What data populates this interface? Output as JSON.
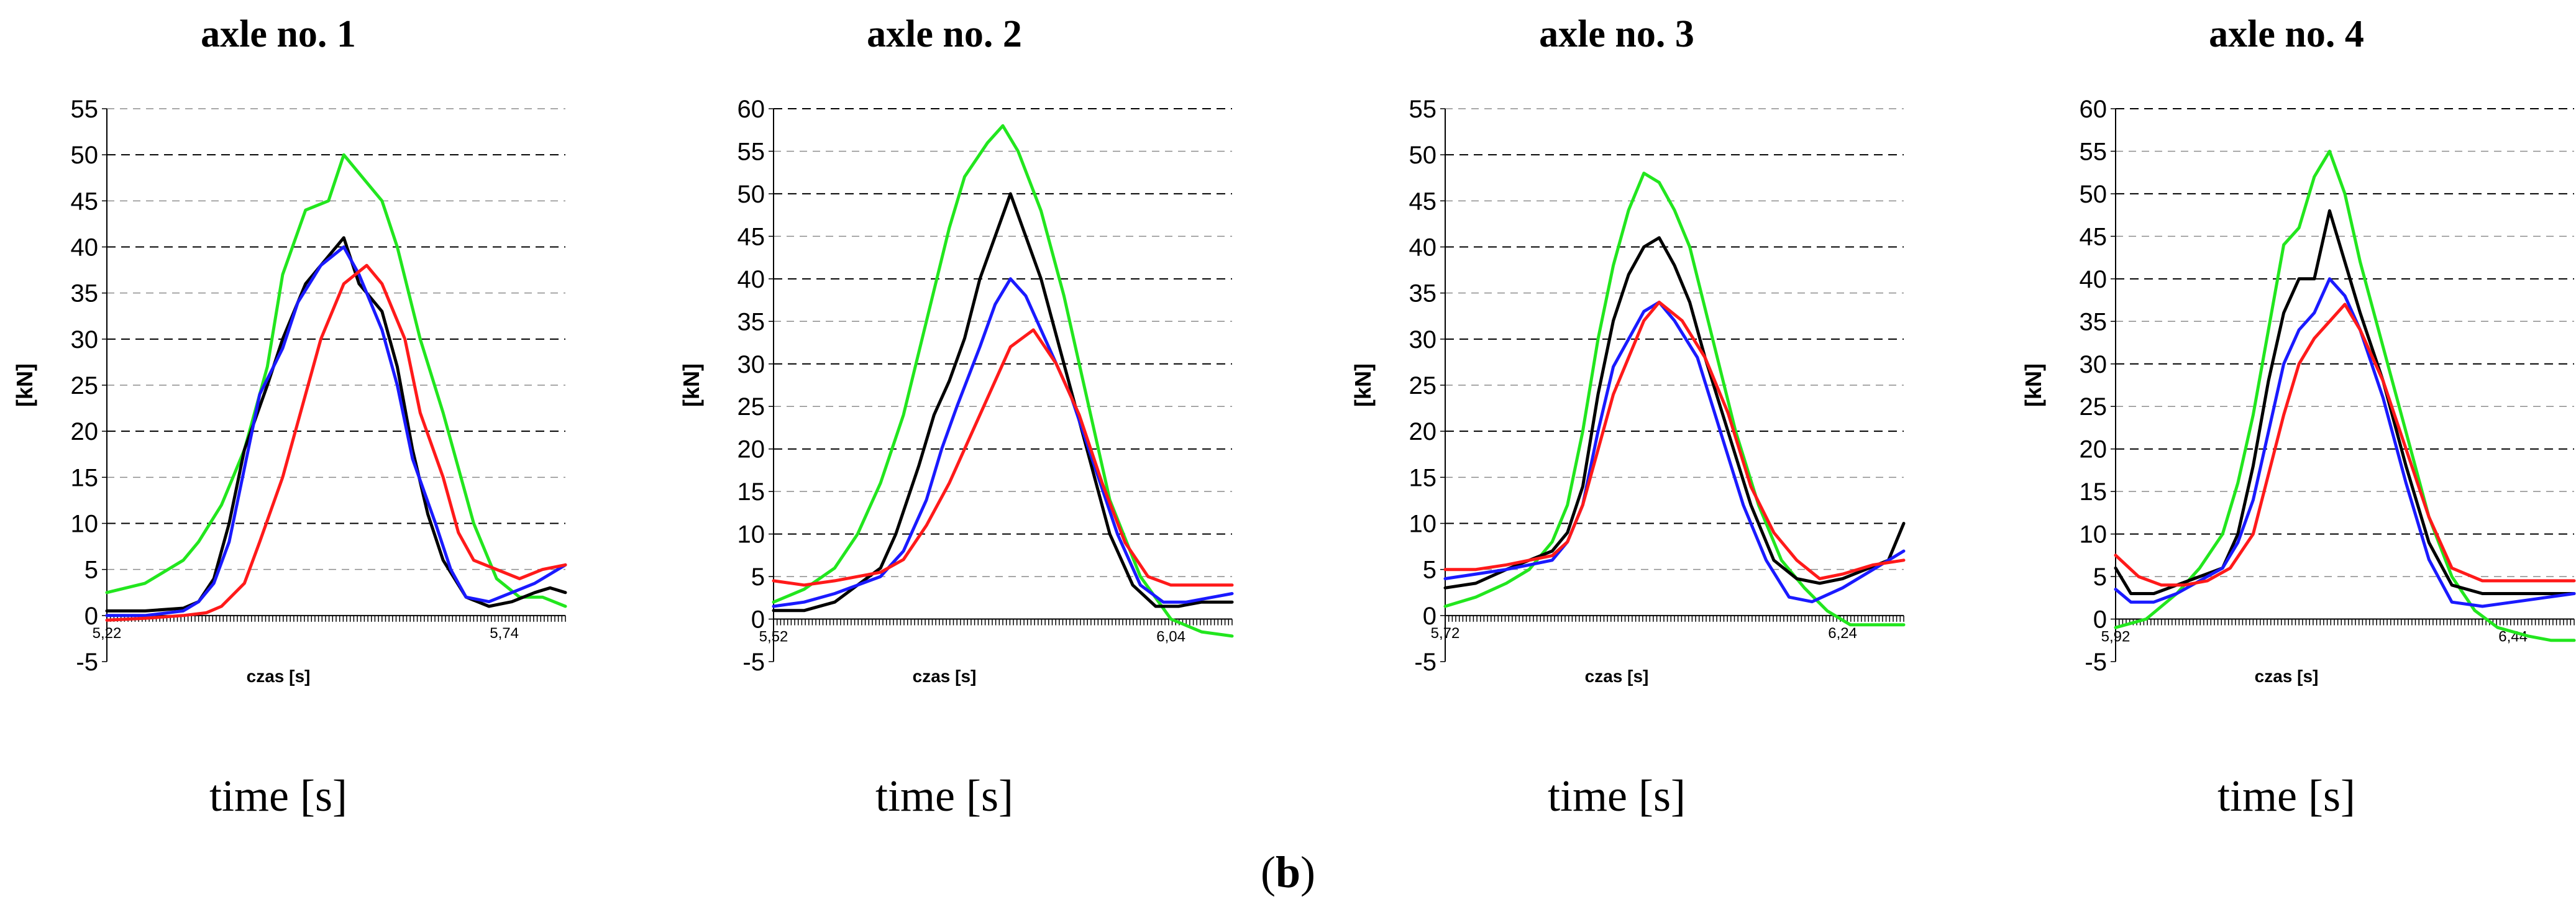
{
  "caption": {
    "open": "(",
    "letter": "b",
    "close": ")"
  },
  "colors": {
    "green": "#22e61e",
    "red": "#ff1a1a",
    "blue": "#1a1aff",
    "black": "#000000"
  },
  "chart_data": [
    {
      "type": "line",
      "title": "axle no. 1",
      "xlabel": "czas [s]",
      "ylabel": "[kN]",
      "caption": "time [s]",
      "ylim": [
        -5,
        55
      ],
      "xlim": [
        5.22,
        5.82
      ],
      "yticks": [
        "-5",
        "0",
        "5",
        "10",
        "15",
        "20",
        "25",
        "30",
        "35",
        "40",
        "45",
        "50",
        "55"
      ],
      "xticks": [
        {
          "value": 5.22,
          "label": "5,22"
        },
        {
          "value": 5.74,
          "label": "5,74"
        }
      ],
      "series": [
        {
          "name": "green",
          "color": "#22e61e",
          "x": [
            5.22,
            5.27,
            5.32,
            5.34,
            5.37,
            5.4,
            5.43,
            5.45,
            5.48,
            5.51,
            5.53,
            5.56,
            5.58,
            5.6,
            5.63,
            5.66,
            5.68,
            5.7,
            5.73,
            5.76,
            5.79,
            5.82
          ],
          "y": [
            2.5,
            3.5,
            6,
            8,
            12,
            18,
            27,
            37,
            44,
            45,
            50,
            47,
            45,
            40,
            30,
            22,
            16,
            10,
            4,
            2,
            2,
            1
          ]
        },
        {
          "name": "black",
          "color": "#000000",
          "x": [
            5.22,
            5.27,
            5.32,
            5.34,
            5.36,
            5.38,
            5.4,
            5.43,
            5.45,
            5.48,
            5.5,
            5.53,
            5.55,
            5.58,
            5.6,
            5.62,
            5.64,
            5.66,
            5.69,
            5.72,
            5.75,
            5.78,
            5.8,
            5.82
          ],
          "y": [
            0.5,
            0.5,
            0.8,
            1.5,
            4,
            10,
            18,
            25,
            30,
            36,
            38,
            41,
            36,
            33,
            27,
            18,
            11,
            6,
            2,
            1,
            1.5,
            2.5,
            3,
            2.5
          ]
        },
        {
          "name": "blue",
          "color": "#1a1aff",
          "x": [
            5.22,
            5.27,
            5.32,
            5.34,
            5.36,
            5.38,
            5.4,
            5.42,
            5.45,
            5.47,
            5.5,
            5.53,
            5.55,
            5.58,
            5.6,
            5.62,
            5.65,
            5.67,
            5.69,
            5.72,
            5.75,
            5.78,
            5.8,
            5.82
          ],
          "y": [
            0,
            0,
            0.5,
            1.5,
            3.5,
            8,
            16,
            24,
            29,
            34,
            38,
            40,
            37,
            31,
            25,
            17,
            10,
            5,
            2,
            1.5,
            2.5,
            3.5,
            4.5,
            5.5
          ]
        },
        {
          "name": "red",
          "color": "#ff1a1a",
          "x": [
            5.22,
            5.27,
            5.32,
            5.35,
            5.37,
            5.4,
            5.42,
            5.45,
            5.48,
            5.5,
            5.53,
            5.56,
            5.58,
            5.61,
            5.63,
            5.66,
            5.68,
            5.7,
            5.73,
            5.76,
            5.79,
            5.82
          ],
          "y": [
            -0.5,
            -0.3,
            0,
            0.3,
            1,
            3.5,
            8,
            15,
            24,
            30,
            36,
            38,
            36,
            30,
            22,
            15,
            9,
            6,
            5,
            4,
            5,
            5.5
          ]
        }
      ]
    },
    {
      "type": "line",
      "title": "axle no. 2",
      "xlabel": "czas [s]",
      "ylabel": "[kN]",
      "caption": "time [s]",
      "ylim": [
        -5,
        60
      ],
      "xlim": [
        5.52,
        6.12
      ],
      "yticks": [
        "-5",
        "0",
        "5",
        "10",
        "15",
        "20",
        "25",
        "30",
        "35",
        "40",
        "45",
        "50",
        "55",
        "60"
      ],
      "xticks": [
        {
          "value": 5.52,
          "label": "5,52"
        },
        {
          "value": 6.04,
          "label": "6,04"
        }
      ],
      "series": [
        {
          "name": "green",
          "color": "#22e61e",
          "x": [
            5.52,
            5.56,
            5.6,
            5.63,
            5.66,
            5.69,
            5.72,
            5.75,
            5.77,
            5.8,
            5.82,
            5.84,
            5.87,
            5.9,
            5.93,
            5.96,
            6.0,
            6.04,
            6.08,
            6.12
          ],
          "y": [
            2,
            3.5,
            6,
            10,
            16,
            24,
            35,
            46,
            52,
            56,
            58,
            55,
            48,
            38,
            26,
            14,
            5,
            0,
            -1.5,
            -2
          ]
        },
        {
          "name": "black",
          "color": "#000000",
          "x": [
            5.52,
            5.56,
            5.6,
            5.63,
            5.66,
            5.68,
            5.71,
            5.73,
            5.75,
            5.77,
            5.79,
            5.81,
            5.83,
            5.85,
            5.87,
            5.9,
            5.93,
            5.96,
            5.99,
            6.02,
            6.05,
            6.08,
            6.12
          ],
          "y": [
            1,
            1,
            2,
            4,
            6,
            10,
            18,
            24,
            28,
            33,
            40,
            45,
            50,
            45,
            40,
            30,
            20,
            10,
            4,
            1.5,
            1.5,
            2,
            2
          ]
        },
        {
          "name": "blue",
          "color": "#1a1aff",
          "x": [
            5.52,
            5.56,
            5.6,
            5.63,
            5.66,
            5.69,
            5.72,
            5.74,
            5.76,
            5.79,
            5.81,
            5.83,
            5.85,
            5.88,
            5.91,
            5.94,
            5.97,
            6.0,
            6.03,
            6.06,
            6.09,
            6.12
          ],
          "y": [
            1.5,
            2,
            3,
            4,
            5,
            8,
            14,
            20,
            25,
            32,
            37,
            40,
            38,
            32,
            26,
            18,
            10,
            4,
            2,
            2,
            2.5,
            3
          ]
        },
        {
          "name": "red",
          "color": "#ff1a1a",
          "x": [
            5.52,
            5.56,
            5.6,
            5.63,
            5.66,
            5.69,
            5.72,
            5.75,
            5.78,
            5.81,
            5.83,
            5.86,
            5.89,
            5.92,
            5.95,
            5.98,
            6.01,
            6.04,
            6.08,
            6.12
          ],
          "y": [
            4.5,
            4,
            4.5,
            5,
            5.5,
            7,
            11,
            16,
            22,
            28,
            32,
            34,
            30,
            24,
            16,
            9,
            5,
            4,
            4,
            4
          ]
        }
      ]
    },
    {
      "type": "line",
      "title": "axle no. 3",
      "xlabel": "czas [s]",
      "ylabel": "[kN]",
      "caption": "time [s]",
      "ylim": [
        -5,
        55
      ],
      "xlim": [
        5.72,
        6.32
      ],
      "yticks": [
        "-5",
        "0",
        "5",
        "10",
        "15",
        "20",
        "25",
        "30",
        "35",
        "40",
        "45",
        "50",
        "55"
      ],
      "xticks": [
        {
          "value": 5.72,
          "label": "5,72"
        },
        {
          "value": 6.24,
          "label": "6,24"
        }
      ],
      "series": [
        {
          "name": "green",
          "color": "#22e61e",
          "x": [
            5.72,
            5.76,
            5.8,
            5.83,
            5.86,
            5.88,
            5.9,
            5.92,
            5.94,
            5.96,
            5.98,
            6.0,
            6.02,
            6.04,
            6.07,
            6.1,
            6.13,
            6.16,
            6.19,
            6.22,
            6.25,
            6.28,
            6.32
          ],
          "y": [
            1,
            2,
            3.5,
            5,
            8,
            12,
            20,
            30,
            38,
            44,
            48,
            47,
            44,
            40,
            30,
            20,
            12,
            6,
            3,
            0.5,
            -1,
            -1,
            -1
          ]
        },
        {
          "name": "black",
          "color": "#000000",
          "x": [
            5.72,
            5.76,
            5.8,
            5.83,
            5.86,
            5.88,
            5.9,
            5.92,
            5.94,
            5.96,
            5.98,
            6.0,
            6.02,
            6.04,
            6.06,
            6.09,
            6.12,
            6.15,
            6.18,
            6.21,
            6.24,
            6.27,
            6.3,
            6.32
          ],
          "y": [
            3,
            3.5,
            5,
            6,
            7,
            9,
            14,
            24,
            32,
            37,
            40,
            41,
            38,
            34,
            28,
            20,
            12,
            6,
            4,
            3.5,
            4,
            5,
            6,
            10
          ]
        },
        {
          "name": "blue",
          "color": "#1a1aff",
          "x": [
            5.72,
            5.76,
            5.8,
            5.83,
            5.86,
            5.88,
            5.9,
            5.92,
            5.94,
            5.96,
            5.98,
            6.0,
            6.02,
            6.05,
            6.08,
            6.11,
            6.14,
            6.17,
            6.2,
            6.24,
            6.28,
            6.32
          ],
          "y": [
            4,
            4.5,
            5,
            5.5,
            6,
            8,
            12,
            20,
            27,
            30,
            33,
            34,
            32,
            28,
            20,
            12,
            6,
            2,
            1.5,
            3,
            5,
            7
          ]
        },
        {
          "name": "red",
          "color": "#ff1a1a",
          "x": [
            5.72,
            5.76,
            5.8,
            5.83,
            5.86,
            5.88,
            5.9,
            5.92,
            5.94,
            5.96,
            5.98,
            6.0,
            6.03,
            6.06,
            6.09,
            6.12,
            6.15,
            6.18,
            6.21,
            6.24,
            6.28,
            6.32
          ],
          "y": [
            5,
            5,
            5.5,
            6,
            6.5,
            8,
            12,
            18,
            24,
            28,
            32,
            34,
            32,
            28,
            22,
            14,
            9,
            6,
            4,
            4.5,
            5.5,
            6
          ]
        }
      ]
    },
    {
      "type": "line",
      "title": "axle no. 4",
      "xlabel": "czas [s]",
      "ylabel": "[kN]",
      "caption": "time [s]",
      "ylim": [
        -5,
        60
      ],
      "xlim": [
        5.92,
        6.52
      ],
      "yticks": [
        "-5",
        "0",
        "5",
        "10",
        "15",
        "20",
        "25",
        "30",
        "35",
        "40",
        "45",
        "50",
        "55",
        "60"
      ],
      "xticks": [
        {
          "value": 5.92,
          "label": "5,92"
        },
        {
          "value": 6.44,
          "label": "6,44"
        }
      ],
      "series": [
        {
          "name": "green",
          "color": "#22e61e",
          "x": [
            5.92,
            5.96,
            6.0,
            6.03,
            6.06,
            6.08,
            6.1,
            6.12,
            6.14,
            6.16,
            6.18,
            6.2,
            6.22,
            6.24,
            6.27,
            6.3,
            6.33,
            6.36,
            6.39,
            6.42,
            6.46,
            6.49,
            6.52
          ],
          "y": [
            -1,
            0,
            3,
            6,
            10,
            16,
            24,
            34,
            44,
            46,
            52,
            55,
            50,
            42,
            32,
            22,
            12,
            5,
            1,
            -1,
            -2,
            -2.5,
            -2.5
          ]
        },
        {
          "name": "black",
          "color": "#000000",
          "x": [
            5.92,
            5.94,
            5.97,
            6.0,
            6.03,
            6.06,
            6.08,
            6.1,
            6.12,
            6.14,
            6.16,
            6.18,
            6.2,
            6.22,
            6.24,
            6.27,
            6.3,
            6.33,
            6.36,
            6.4,
            6.44,
            6.48,
            6.52
          ],
          "y": [
            6,
            3,
            3,
            4,
            5,
            6,
            10,
            18,
            28,
            36,
            40,
            40,
            48,
            42,
            36,
            28,
            18,
            9,
            4,
            3,
            3,
            3,
            3
          ]
        },
        {
          "name": "blue",
          "color": "#1a1aff",
          "x": [
            5.92,
            5.94,
            5.97,
            6.0,
            6.03,
            6.06,
            6.08,
            6.1,
            6.12,
            6.14,
            6.16,
            6.18,
            6.2,
            6.22,
            6.24,
            6.27,
            6.3,
            6.33,
            6.36,
            6.4,
            6.44,
            6.48,
            6.52
          ],
          "y": [
            3.5,
            2,
            2,
            3,
            4.5,
            6,
            9,
            14,
            22,
            30,
            34,
            36,
            40,
            38,
            34,
            26,
            16,
            7,
            2,
            1.5,
            2,
            2.5,
            3
          ]
        },
        {
          "name": "red",
          "color": "#ff1a1a",
          "x": [
            5.92,
            5.95,
            5.98,
            6.01,
            6.04,
            6.07,
            6.1,
            6.12,
            6.14,
            6.16,
            6.18,
            6.2,
            6.22,
            6.24,
            6.27,
            6.3,
            6.33,
            6.36,
            6.4,
            6.44,
            6.48,
            6.52
          ],
          "y": [
            7.5,
            5,
            4,
            4,
            4.5,
            6,
            10,
            17,
            24,
            30,
            33,
            35,
            37,
            34,
            28,
            20,
            12,
            6,
            4.5,
            4.5,
            4.5,
            4.5
          ]
        }
      ]
    }
  ]
}
